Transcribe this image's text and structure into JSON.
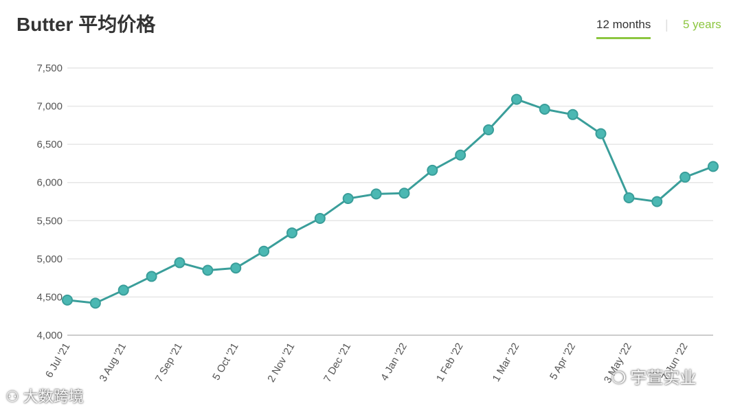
{
  "header": {
    "title": "Butter 平均价格",
    "tabs": [
      {
        "label": "12 months",
        "active": true
      },
      {
        "label": "5 years",
        "active": false
      }
    ],
    "accent": "#8cc63f"
  },
  "watermarks": {
    "left": "大数跨境",
    "right": "宇萱实业"
  },
  "chart_data": {
    "type": "line",
    "title": "Butter 平均价格",
    "xlabel": "",
    "ylabel": "",
    "ylim": [
      4000,
      7500
    ],
    "yticks": [
      4000,
      4500,
      5000,
      5500,
      6000,
      6500,
      7000,
      7500
    ],
    "ytick_labels": [
      "4,000",
      "4,500",
      "5,000",
      "5,500",
      "6,000",
      "6,500",
      "7,000",
      "7,500"
    ],
    "grid": true,
    "line_color": "#3a9e9a",
    "marker_color": "#4bb8b3",
    "x_labels": [
      "6 Jul '21",
      "3 Aug '21",
      "7 Sep '21",
      "5 Oct '21",
      "2 Nov '21",
      "7 Dec '21",
      "4 Jan '22",
      "1 Feb '22",
      "1 Mar '22",
      "5 Apr '22",
      "3 May '22",
      "7 Jun '22"
    ],
    "series": [
      {
        "values": [
          4460,
          4420,
          4590,
          4770,
          4950,
          4850,
          4880,
          5100,
          5340,
          5530,
          5790,
          5850,
          5860,
          6160,
          6360,
          6690,
          7090,
          6960,
          6890,
          6640,
          5800,
          5750,
          6070,
          6210
        ]
      }
    ]
  }
}
